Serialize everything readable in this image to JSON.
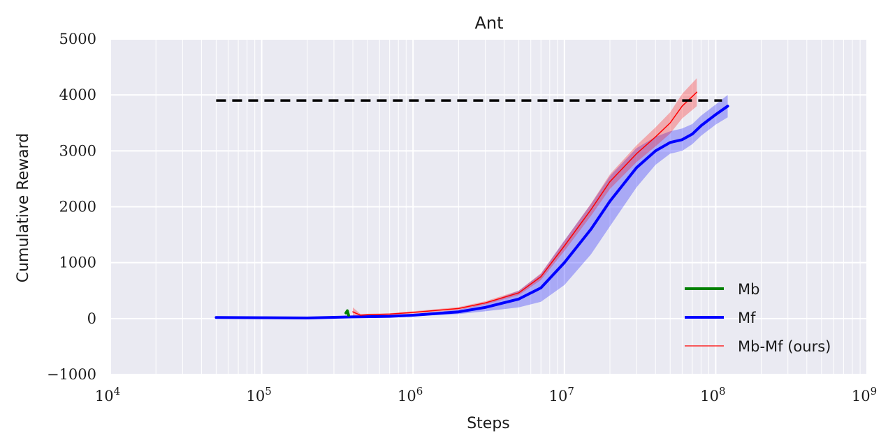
{
  "chart_data": {
    "type": "line",
    "title": "Ant",
    "xlabel": "Steps",
    "ylabel": "Cumulative Reward",
    "xscale": "log",
    "xlim": [
      10000,
      1000000000
    ],
    "ylim": [
      -1000,
      5000
    ],
    "x_ticks": [
      {
        "value": 10000,
        "base": "10",
        "exp": "4"
      },
      {
        "value": 100000,
        "base": "10",
        "exp": "5"
      },
      {
        "value": 1000000,
        "base": "10",
        "exp": "6"
      },
      {
        "value": 10000000,
        "base": "10",
        "exp": "7"
      },
      {
        "value": 100000000,
        "base": "10",
        "exp": "8"
      },
      {
        "value": 1000000000,
        "base": "10",
        "exp": "9"
      }
    ],
    "y_ticks": [
      {
        "value": 5000,
        "label": "5000"
      },
      {
        "value": 4000,
        "label": "4000"
      },
      {
        "value": 3000,
        "label": "3000"
      },
      {
        "value": 2000,
        "label": "2000"
      },
      {
        "value": 1000,
        "label": "1000"
      },
      {
        "value": 0,
        "label": "0"
      },
      {
        "value": -1000,
        "label": "−1000"
      }
    ],
    "grid": true,
    "legend_position": "lower-right",
    "reference_line": {
      "y": 3900,
      "x_range": [
        50000,
        110000000
      ],
      "color": "#000000",
      "style": "dashed"
    },
    "series": [
      {
        "name": "Mb",
        "color": "#008000",
        "x": [
          360000,
          368000,
          375000
        ],
        "y": [
          100,
          140,
          60
        ],
        "band": [
          20,
          30,
          30
        ]
      },
      {
        "name": "Mf",
        "color": "#0000ff",
        "x": [
          50000,
          100000,
          200000,
          400000,
          700000,
          1000000,
          2000000,
          3000000,
          5000000,
          7000000,
          10000000,
          15000000,
          20000000,
          30000000,
          40000000,
          50000000,
          60000000,
          70000000,
          80000000,
          100000000,
          120000000
        ],
        "y": [
          20,
          15,
          10,
          30,
          40,
          60,
          120,
          200,
          350,
          550,
          1000,
          1600,
          2100,
          2700,
          3000,
          3150,
          3200,
          3300,
          3450,
          3650,
          3800
        ],
        "band": [
          5,
          5,
          5,
          10,
          15,
          20,
          40,
          70,
          150,
          250,
          400,
          450,
          450,
          350,
          250,
          200,
          200,
          180,
          180,
          180,
          200
        ]
      },
      {
        "name": "Mb-Mf (ours)",
        "color": "#ff0000",
        "x": [
          400000,
          450000,
          500000,
          700000,
          1000000,
          2000000,
          3000000,
          5000000,
          7000000,
          10000000,
          15000000,
          20000000,
          30000000,
          40000000,
          50000000,
          60000000,
          75000000
        ],
        "y": [
          120,
          60,
          70,
          80,
          110,
          180,
          280,
          460,
          750,
          1300,
          1950,
          2450,
          2950,
          3250,
          3500,
          3800,
          4050
        ],
        "band": [
          80,
          20,
          15,
          15,
          20,
          25,
          30,
          40,
          60,
          90,
          110,
          130,
          150,
          170,
          190,
          220,
          250
        ]
      }
    ]
  }
}
